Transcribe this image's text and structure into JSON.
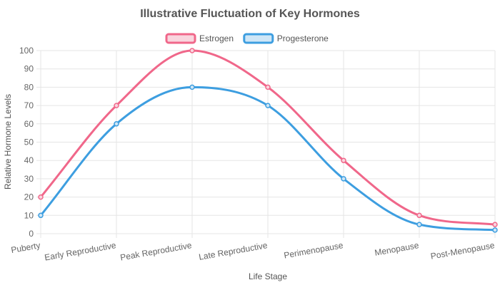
{
  "chart_data": {
    "type": "line",
    "title": "Illustrative Fluctuation of Key Hormones",
    "xlabel": "Life Stage",
    "ylabel": "Relative Hormone Levels",
    "categories": [
      "Puberty",
      "Early Reproductive",
      "Peak Reproductive",
      "Late Reproductive",
      "Perimenopause",
      "Menopause",
      "Post-Menopause"
    ],
    "ylim": [
      0,
      100
    ],
    "yticks": [
      0,
      10,
      20,
      30,
      40,
      50,
      60,
      70,
      80,
      90,
      100
    ],
    "grid": true,
    "legend_position": "top",
    "series": [
      {
        "name": "Estrogen",
        "values": [
          20,
          70,
          100,
          80,
          40,
          10,
          5
        ],
        "color": "#f0678a",
        "fill": "#f9d5de"
      },
      {
        "name": "Progesterone",
        "values": [
          10,
          60,
          80,
          70,
          30,
          5,
          2
        ],
        "color": "#3d9ee0",
        "fill": "#cfe6f6"
      }
    ]
  }
}
